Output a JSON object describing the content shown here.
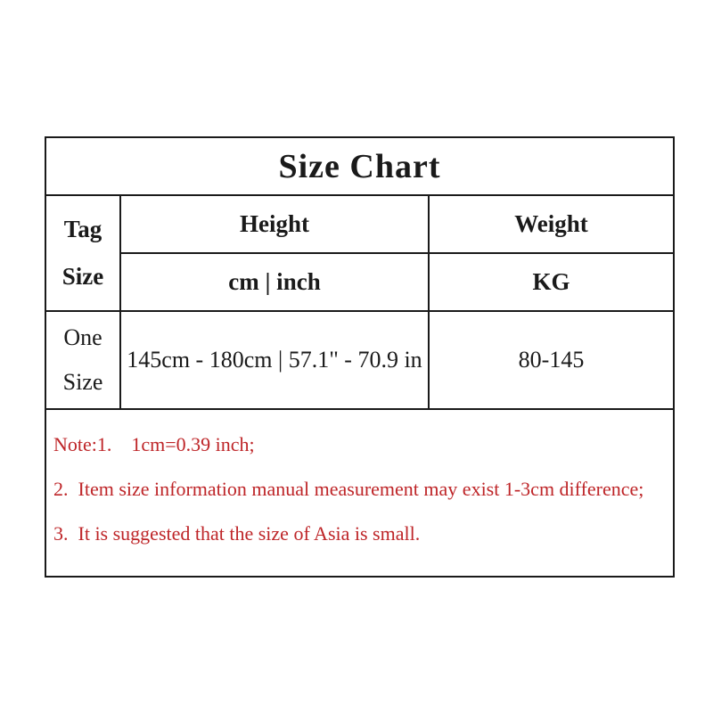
{
  "title": "Size Chart",
  "table": {
    "tag_header": {
      "line1": "Tag",
      "line2": "Size"
    },
    "height_header": "Height",
    "weight_header": "Weight",
    "height_unit": "cm | inch",
    "weight_unit": "KG",
    "row": {
      "size_line1": "One",
      "size_line2": "Size",
      "height_value": "145cm - 180cm | 57.1\" - 70.9 in",
      "weight_value": "80-145"
    }
  },
  "notes": {
    "line1": "Note:1.    1cm=0.39 inch;",
    "line2": "2.  Item size information manual measurement may exist 1-3cm difference;",
    "line3": "3.  It is suggested that the size of Asia is small."
  },
  "colors": {
    "text": "#1a1a1a",
    "border": "#1a1a1a",
    "note_red": "#be2528",
    "background": "#ffffff"
  }
}
